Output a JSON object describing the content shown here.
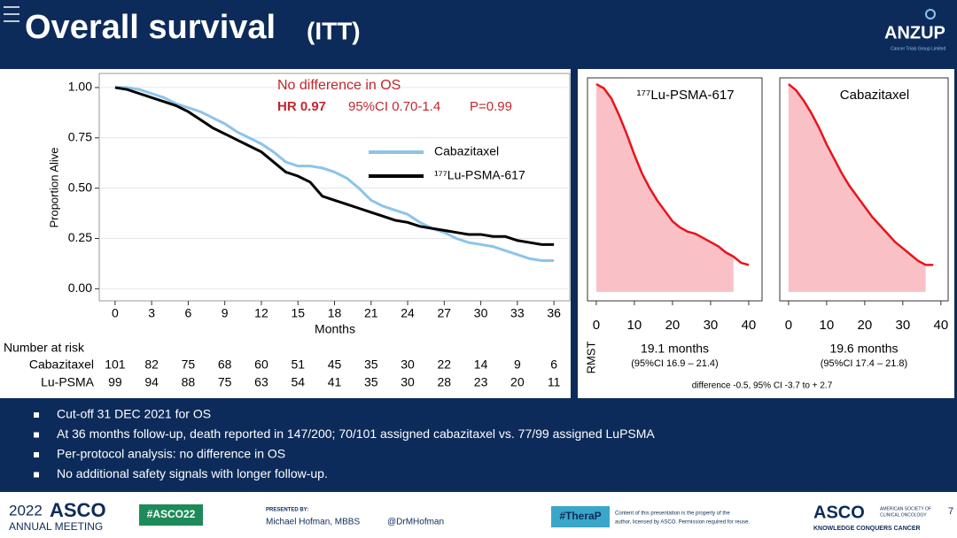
{
  "header": {
    "title": "Overall survival",
    "subtitle": "(ITT)",
    "logo": "ANZUP",
    "logo_sub": "Cancer Trials Group Limited"
  },
  "chart_data": [
    {
      "type": "line",
      "annotation_title": "No difference in OS",
      "hr": "HR 0.97",
      "ci": "95%CI 0.70-1.4",
      "p": "P=0.99",
      "xlabel": "Months",
      "ylabel": "Proportion Alive",
      "x": [
        0,
        1,
        2,
        3,
        4,
        5,
        6,
        7,
        8,
        9,
        10,
        11,
        12,
        13,
        14,
        15,
        16,
        17,
        18,
        19,
        20,
        21,
        22,
        23,
        24,
        25,
        26,
        27,
        28,
        29,
        30,
        31,
        32,
        33,
        34,
        35,
        36
      ],
      "series": [
        {
          "name": "Cabazitaxel",
          "color": "#8cc4ea",
          "values": [
            1.0,
            1.0,
            0.99,
            0.97,
            0.95,
            0.92,
            0.9,
            0.88,
            0.85,
            0.82,
            0.78,
            0.75,
            0.72,
            0.68,
            0.63,
            0.61,
            0.61,
            0.6,
            0.58,
            0.55,
            0.5,
            0.44,
            0.41,
            0.39,
            0.37,
            0.33,
            0.3,
            0.28,
            0.25,
            0.23,
            0.22,
            0.21,
            0.19,
            0.17,
            0.15,
            0.14,
            0.14
          ]
        },
        {
          "name": "¹⁷⁷Lu-PSMA-617",
          "color": "#000000",
          "values": [
            1.0,
            0.99,
            0.97,
            0.95,
            0.93,
            0.91,
            0.88,
            0.84,
            0.8,
            0.77,
            0.74,
            0.71,
            0.68,
            0.63,
            0.58,
            0.56,
            0.53,
            0.46,
            0.44,
            0.42,
            0.4,
            0.38,
            0.36,
            0.34,
            0.33,
            0.31,
            0.3,
            0.29,
            0.28,
            0.27,
            0.27,
            0.26,
            0.26,
            0.24,
            0.23,
            0.22,
            0.22
          ]
        }
      ],
      "xlim": [
        -1.3,
        37.3
      ],
      "ylim": [
        -0.06,
        1.07
      ],
      "xticks": [
        0,
        3,
        6,
        9,
        12,
        15,
        18,
        21,
        24,
        27,
        30,
        33,
        36
      ],
      "yticks": [
        {
          "value": 0,
          "label": "0.00"
        },
        {
          "value": 0.25,
          "label": "0.25"
        },
        {
          "value": 0.5,
          "label": "0.50"
        },
        {
          "value": 0.75,
          "label": "0.75"
        },
        {
          "value": 1,
          "label": "1.00"
        }
      ],
      "grid": true,
      "risk_table": {
        "title": "Number at risk",
        "rows": [
          {
            "label": "Cabazitaxel",
            "values": [
              101,
              82,
              75,
              68,
              60,
              51,
              45,
              35,
              30,
              22,
              14,
              9,
              6
            ]
          },
          {
            "label": "Lu-PSMA",
            "values": [
              99,
              94,
              88,
              75,
              63,
              54,
              41,
              35,
              30,
              28,
              23,
              20,
              11
            ]
          }
        ]
      }
    },
    {
      "type": "area",
      "title": "¹⁷⁷Lu-PSMA-617",
      "color": "#e8141b",
      "fill": "#f9c0c6",
      "x": [
        0,
        2,
        4,
        6,
        8,
        10,
        12,
        14,
        16,
        18,
        20,
        22,
        24,
        26,
        28,
        30,
        32,
        34,
        36,
        38,
        40
      ],
      "values": [
        1.0,
        0.98,
        0.93,
        0.85,
        0.76,
        0.66,
        0.57,
        0.5,
        0.44,
        0.39,
        0.34,
        0.31,
        0.29,
        0.28,
        0.26,
        0.24,
        0.22,
        0.19,
        0.17,
        0.14,
        0.13
      ],
      "rmst_limit": 36,
      "rmst": "19.1 months",
      "rmst_ci": "(95%CI 16.9 – 21.4)",
      "xlim": [
        -2.3,
        43.5
      ],
      "ylim": [
        -0.043,
        1.03
      ],
      "xticks": [
        0,
        10,
        20,
        30,
        40
      ]
    },
    {
      "type": "area",
      "title": "Cabazitaxel",
      "color": "#e8141b",
      "fill": "#f9c0c6",
      "x": [
        0,
        2,
        4,
        6,
        8,
        10,
        12,
        14,
        16,
        18,
        20,
        22,
        24,
        26,
        28,
        30,
        32,
        34,
        36,
        38
      ],
      "values": [
        1.0,
        0.97,
        0.92,
        0.86,
        0.79,
        0.71,
        0.64,
        0.57,
        0.51,
        0.46,
        0.41,
        0.36,
        0.32,
        0.28,
        0.24,
        0.21,
        0.18,
        0.15,
        0.13,
        0.13
      ],
      "rmst_limit": 36,
      "rmst": "19.6 months",
      "rmst_ci": "(95%CI 17.4 – 21.8)",
      "xlim": [
        -2.3,
        41.9
      ],
      "ylim": [
        -0.043,
        1.03
      ],
      "xticks": [
        0,
        10,
        20,
        30,
        40
      ]
    }
  ],
  "rmst_panel": {
    "ylabel": "RMST",
    "note": "difference -0.5, 95% CI -3.7 to + 2.7"
  },
  "bullets": [
    "Cut-off 31 DEC 2021 for OS",
    "At 36 months follow-up, death reported in 147/200; 70/101 assigned cabazitaxel vs. 77/99 assigned LuPSMA",
    "Per-protocol analysis: no difference in OS",
    "No additional safety signals with longer follow-up."
  ],
  "footer": {
    "year": "2022",
    "asco": "ASCO",
    "meeting": "ANNUAL MEETING",
    "hashtag": "#ASCO22",
    "presented_by": "PRESENTED BY:",
    "presenter": "Michael Hofman, MBBS",
    "handle": "@DrMHofman",
    "trial_tag": "#TheraP",
    "disclaimer_1": "Content of this presentation is the property of the",
    "disclaimer_2": "author, licensed by ASCO. Permission required for reuse.",
    "asco_logo": "ASCO",
    "society_1": "AMERICAN SOCIETY OF",
    "society_2": "CLINICAL ONCOLOGY",
    "tagline": "KNOWLEDGE CONQUERS CANCER",
    "page": "7"
  }
}
